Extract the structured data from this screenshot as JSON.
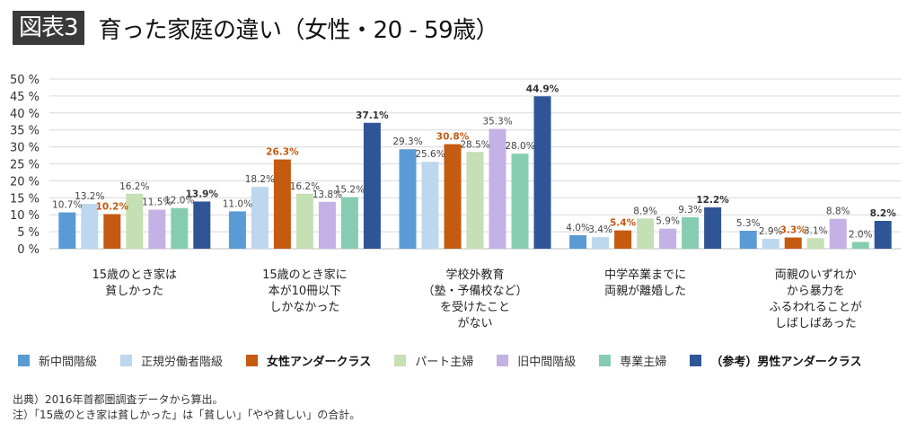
{
  "header": {
    "badge": "図表3",
    "title": "育った家庭の違い（女性・20 - 59歳）"
  },
  "chart_data": {
    "type": "bar",
    "title": "育った家庭の違い（女性・20 - 59歳）",
    "xlabel": "",
    "ylabel": "",
    "ylim": [
      0,
      50
    ],
    "yticks": [
      0,
      5,
      10,
      15,
      20,
      25,
      30,
      35,
      40,
      45,
      50
    ],
    "ytick_labels": [
      "0 %",
      "5 %",
      "10 %",
      "15 %",
      "20 %",
      "25 %",
      "30 %",
      "35 %",
      "40 %",
      "45 %",
      "50 %"
    ],
    "grid": true,
    "legend_position": "bottom",
    "categories": [
      [
        "15歳のとき家は",
        "貧しかった"
      ],
      [
        "15歳のとき家に",
        "本が10冊以下",
        "しかなかった"
      ],
      [
        "学校外教育",
        "（塾・予備校など）",
        "を受けたこと",
        "がない"
      ],
      [
        "中学卒業までに",
        "両親が離婚した"
      ],
      [
        "両親のいずれか",
        "から暴力を",
        "ふるわれることが",
        "しばしばあった"
      ]
    ],
    "series": [
      {
        "name": "新中間階級",
        "color": "#5b9bd5",
        "bold": false,
        "values": [
          10.7,
          11.0,
          29.3,
          4.0,
          5.3
        ]
      },
      {
        "name": "正規労働者階級",
        "color": "#bdd7ee",
        "bold": false,
        "values": [
          13.2,
          18.2,
          25.6,
          3.4,
          2.9
        ]
      },
      {
        "name": "女性アンダークラス",
        "color": "#c55a11",
        "bold": true,
        "label_color": "#c55a11",
        "values": [
          10.2,
          26.3,
          30.8,
          5.4,
          3.3
        ]
      },
      {
        "name": "パート主婦",
        "color": "#c5e0b4",
        "bold": false,
        "values": [
          16.2,
          16.2,
          28.5,
          8.9,
          3.1
        ]
      },
      {
        "name": "旧中間階級",
        "color": "#c4b1e5",
        "bold": false,
        "values": [
          11.5,
          13.8,
          35.3,
          5.9,
          8.8
        ]
      },
      {
        "name": "専業主婦",
        "color": "#86ccb0",
        "bold": false,
        "values": [
          12.0,
          15.2,
          28.0,
          9.3,
          2.0
        ]
      },
      {
        "name": "（参考）男性アンダークラス",
        "color": "#2f5597",
        "bold": true,
        "label_color": "#333333",
        "values": [
          13.9,
          37.1,
          44.9,
          12.2,
          8.2
        ]
      }
    ],
    "value_suffix": "%"
  },
  "notes": [
    "出典）2016年首都圏調査データから算出。",
    "注）「15歳のとき家は貧しかった」は「貧しい」「やや貧しい」の合計。"
  ]
}
